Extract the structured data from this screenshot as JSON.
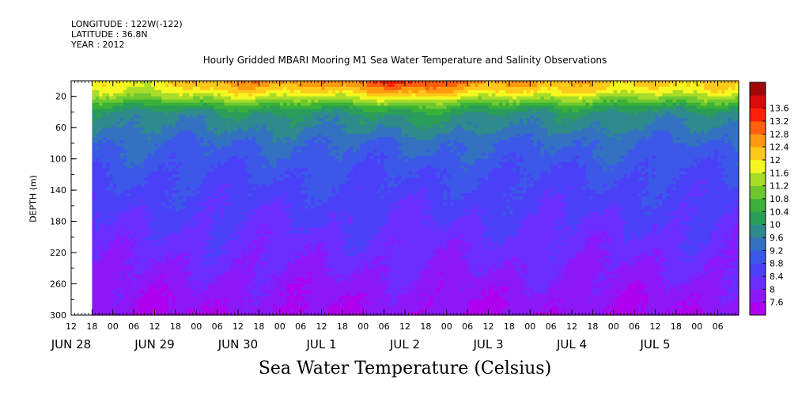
{
  "header": {
    "longitude": "LONGITUDE : 122W(-122)",
    "latitude": "LATITUDE : 36.8N",
    "year": "YEAR : 2012",
    "title": "Hourly Gridded MBARI Mooring M1 Sea Water Temperature and Salinity Observations"
  },
  "chart_data": {
    "type": "heatmap",
    "title": "Hourly Gridded MBARI Mooring M1 Sea Water Temperature and Salinity Observations",
    "xlabel": "Sea Water Temperature (Celsius)",
    "ylabel": "DEPTH (m)",
    "x_range_hours": [
      12,
      204
    ],
    "ylim": [
      300,
      0
    ],
    "y_ticks": [
      20,
      60,
      100,
      140,
      180,
      220,
      260,
      300
    ],
    "x_hour_ticks": [
      "12",
      "18",
      "00",
      "06",
      "12",
      "18",
      "00",
      "06",
      "12",
      "18",
      "00",
      "06",
      "12",
      "18",
      "00",
      "06",
      "12",
      "18",
      "00",
      "06",
      "12",
      "18",
      "00",
      "06",
      "12",
      "18",
      "00",
      "06",
      "12",
      "18",
      "00",
      "06"
    ],
    "x_day_labels": [
      {
        "label": "JUN 28",
        "hour": 12
      },
      {
        "label": "JUN 29",
        "hour": 36
      },
      {
        "label": "JUN 30",
        "hour": 60
      },
      {
        "label": "JUL 1",
        "hour": 84
      },
      {
        "label": "JUL 2",
        "hour": 108
      },
      {
        "label": "JUL 3",
        "hour": 132
      },
      {
        "label": "JUL 4",
        "hour": 156
      },
      {
        "label": "JUL 5",
        "hour": 180
      }
    ],
    "data_start_hour": 18,
    "colorbar": {
      "levels": [
        7.6,
        8,
        8.4,
        8.8,
        9.2,
        9.6,
        10,
        10.4,
        10.8,
        11.2,
        11.6,
        12,
        12.4,
        12.8,
        13.2,
        13.6
      ],
      "colors": [
        "#b000f0",
        "#8c18f8",
        "#6a2cff",
        "#4a40f8",
        "#3c58e8",
        "#3272c0",
        "#2f8a8c",
        "#2a9e58",
        "#3ab238",
        "#6ec830",
        "#a8dc28",
        "#f4f820",
        "#ffc81a",
        "#ff9a10",
        "#ff6010",
        "#ff2008",
        "#d80a0a",
        "#a00808"
      ]
    },
    "profile_depth_m": [
      5,
      15,
      25,
      35,
      45,
      60,
      80,
      100,
      120,
      150,
      180,
      210,
      240,
      270,
      300
    ],
    "profile_temperature_c": [
      12.1,
      11.7,
      11.0,
      10.2,
      9.8,
      9.6,
      9.2,
      9.0,
      8.8,
      8.6,
      8.4,
      8.2,
      8.0,
      7.8,
      7.6
    ],
    "time_series_surface_c": {
      "hours": [
        18,
        30,
        42,
        54,
        66,
        78,
        90,
        102,
        114,
        126,
        138,
        150,
        162,
        174,
        186,
        198
      ],
      "values": [
        11.7,
        11.8,
        12.1,
        12.4,
        12.6,
        12.6,
        12.8,
        13.1,
        13.3,
        12.9,
        12.5,
        12.3,
        12.3,
        12.2,
        12.1,
        12.0
      ]
    }
  }
}
